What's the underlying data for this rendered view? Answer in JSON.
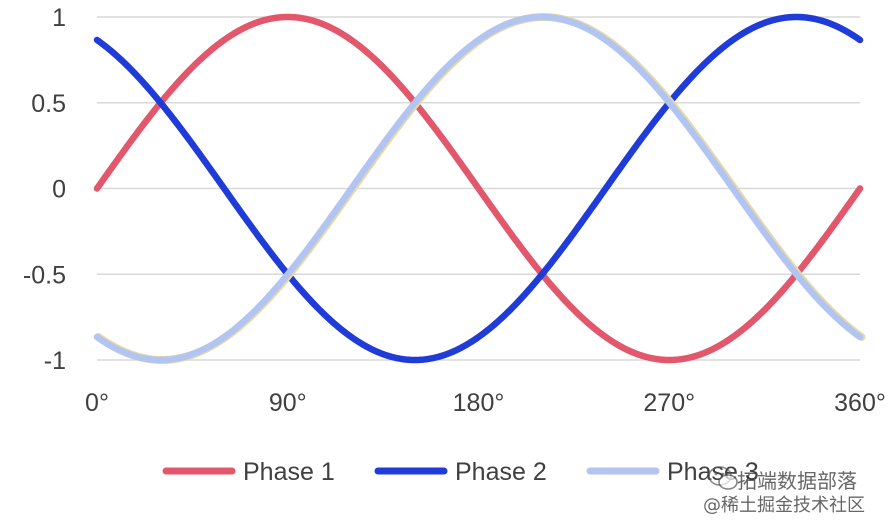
{
  "chart_data": {
    "type": "line",
    "title": "",
    "xlabel": "",
    "ylabel": "",
    "xlim": [
      0,
      360
    ],
    "ylim": [
      -1,
      1
    ],
    "x_ticks": [
      0,
      90,
      180,
      270,
      360
    ],
    "x_tick_labels": [
      "0°",
      "90°",
      "180°",
      "270°",
      "360°"
    ],
    "y_ticks": [
      1,
      0.5,
      0,
      -0.5,
      -1
    ],
    "y_tick_labels": [
      "1",
      "0.5",
      "0",
      "-0.5",
      "-1"
    ],
    "grid": "horizontal",
    "legend": "bottom",
    "series": [
      {
        "name": "Phase 1",
        "color": "#E2576B",
        "function": "sin(x)",
        "phase_shift_deg": 0,
        "x": [
          0,
          30,
          60,
          90,
          120,
          150,
          180,
          210,
          240,
          270,
          300,
          330,
          360
        ],
        "values": [
          0,
          0.5,
          0.866,
          1,
          0.866,
          0.5,
          0,
          -0.5,
          -0.866,
          -1,
          -0.866,
          -0.5,
          0
        ]
      },
      {
        "name": "Phase 2",
        "color": "#1F3BD8",
        "function": "sin(x + 120°)",
        "phase_shift_deg": 120,
        "x": [
          0,
          30,
          60,
          90,
          120,
          150,
          180,
          210,
          240,
          270,
          300,
          330,
          360
        ],
        "values": [
          0.866,
          0.5,
          0,
          -0.5,
          -0.866,
          -1,
          -0.866,
          -0.5,
          0,
          0.5,
          0.866,
          1,
          0.866
        ]
      },
      {
        "name": "Phase 3",
        "color": "#B2C4F2",
        "function": "sin(x - 120°)",
        "phase_shift_deg": -120,
        "x": [
          0,
          30,
          60,
          90,
          120,
          150,
          180,
          210,
          240,
          270,
          300,
          330,
          360
        ],
        "values": [
          -0.866,
          -1,
          -0.866,
          -0.5,
          0,
          0.5,
          0.866,
          1,
          0.866,
          0.5,
          0,
          -0.5,
          -0.866
        ]
      }
    ]
  },
  "watermark": {
    "line1": "拓端数据部落",
    "line2": "@稀土掘金技术社区",
    "icon": "wechat-icon"
  }
}
